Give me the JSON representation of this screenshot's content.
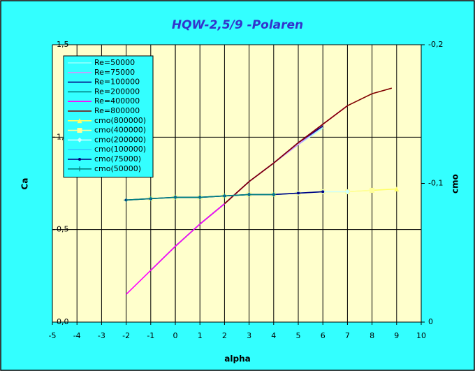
{
  "chart_data": {
    "type": "line",
    "title": "HQW-2,5/9 -Polaren",
    "xlabel": "alpha",
    "ylabel": "Ca",
    "y2label": "cmo",
    "xlim": [
      -5,
      10
    ],
    "xticks": [
      -5,
      -4,
      -3,
      -2,
      -1,
      0,
      1,
      2,
      3,
      4,
      5,
      6,
      7,
      8,
      9,
      10
    ],
    "ylim": [
      0,
      1.5
    ],
    "yticks": [
      {
        "value": 0,
        "label": "0,0"
      },
      {
        "value": 0.5,
        "label": "0,5"
      },
      {
        "value": 1.0,
        "label": "1,0"
      },
      {
        "value": 1.5,
        "label": "1,5"
      }
    ],
    "y2lim": [
      0,
      -0.2
    ],
    "y2ticks": [
      0,
      {
        "value": -0.1,
        "label": "-0,1"
      },
      {
        "value": -0.2,
        "label": "-0,2"
      }
    ],
    "grid": true,
    "legend": "upper left",
    "series": [
      {
        "name": "Re=50000",
        "color": "#99ffff",
        "marker": "none",
        "x": [
          2,
          3,
          4,
          5,
          6
        ],
        "values": [
          0.64,
          0.76,
          0.86,
          0.96,
          1.05
        ]
      },
      {
        "name": "Re=75000",
        "color": "#cc99ff",
        "marker": "none",
        "x": [
          1,
          2,
          3,
          4,
          5,
          6
        ],
        "values": [
          0.53,
          0.64,
          0.76,
          0.86,
          0.96,
          1.06
        ]
      },
      {
        "name": "Re=100000",
        "color": "#000080",
        "marker": "none",
        "x": [
          0,
          1,
          2,
          3,
          4,
          5,
          6
        ],
        "values": [
          0.41,
          0.53,
          0.64,
          0.76,
          0.86,
          0.97,
          1.06
        ]
      },
      {
        "name": "Re=200000",
        "color": "#008080",
        "marker": "none",
        "x": [
          -1,
          0,
          1,
          2,
          3,
          4,
          5,
          6
        ],
        "values": [
          0.28,
          0.41,
          0.53,
          0.64,
          0.76,
          0.86,
          0.97,
          1.07
        ]
      },
      {
        "name": "Re=400000",
        "color": "#ff00ff",
        "marker": "none",
        "x": [
          -2,
          -1,
          0,
          1,
          2,
          3,
          4,
          5,
          6,
          7
        ],
        "values": [
          0.15,
          0.28,
          0.41,
          0.53,
          0.64,
          0.76,
          0.86,
          0.97,
          1.07,
          1.17
        ]
      },
      {
        "name": "Re=800000",
        "color": "#800000",
        "marker": "none",
        "x": [
          2,
          3,
          4,
          5,
          6,
          7,
          8,
          8.8
        ],
        "values": [
          0.64,
          0.76,
          0.86,
          0.97,
          1.07,
          1.17,
          1.235,
          1.265
        ]
      },
      {
        "name": "cmo(800000)",
        "color": "#ffff66",
        "marker": "triangle",
        "axis": "y2",
        "x": [
          2,
          3,
          4,
          5,
          6,
          7,
          8,
          9
        ],
        "values": [
          -0.091,
          -0.092,
          -0.092,
          -0.093,
          -0.094,
          -0.094,
          -0.095,
          -0.096
        ]
      },
      {
        "name": "cmo(400000)",
        "color": "#ffff99",
        "marker": "square",
        "axis": "y2",
        "x": [
          -1,
          0,
          1,
          2,
          3,
          4,
          5,
          6,
          7,
          8
        ],
        "values": [
          -0.089,
          -0.09,
          -0.09,
          -0.091,
          -0.092,
          -0.092,
          -0.093,
          -0.094,
          -0.094,
          -0.095
        ]
      },
      {
        "name": "cmo(200000)",
        "color": "#ccffff",
        "marker": "diamond",
        "axis": "y2",
        "x": [
          -1,
          0,
          1,
          2,
          3,
          4,
          5,
          6,
          7
        ],
        "values": [
          -0.089,
          -0.09,
          -0.09,
          -0.091,
          -0.092,
          -0.092,
          -0.093,
          -0.094,
          -0.094
        ]
      },
      {
        "name": "cmo(100000)",
        "color": "#33ccff",
        "marker": "none",
        "axis": "y2",
        "x": [
          0,
          1,
          2,
          3,
          4,
          5,
          6
        ],
        "values": [
          -0.09,
          -0.09,
          -0.091,
          -0.092,
          -0.092,
          -0.093,
          -0.094
        ]
      },
      {
        "name": "cmo(75000)",
        "color": "#000080",
        "marker": "circle",
        "axis": "y2",
        "x": [
          -2,
          -1,
          0,
          1,
          2,
          3,
          4,
          5,
          6
        ],
        "values": [
          -0.088,
          -0.089,
          -0.09,
          -0.09,
          -0.091,
          -0.092,
          -0.092,
          -0.093,
          -0.094
        ]
      },
      {
        "name": "cmo(50000)",
        "color": "#008080",
        "marker": "plus",
        "axis": "y2",
        "x": [
          -2,
          -1,
          0,
          1,
          2,
          3,
          4
        ],
        "values": [
          -0.088,
          -0.089,
          -0.09,
          -0.09,
          -0.091,
          -0.092,
          -0.092
        ]
      }
    ]
  }
}
